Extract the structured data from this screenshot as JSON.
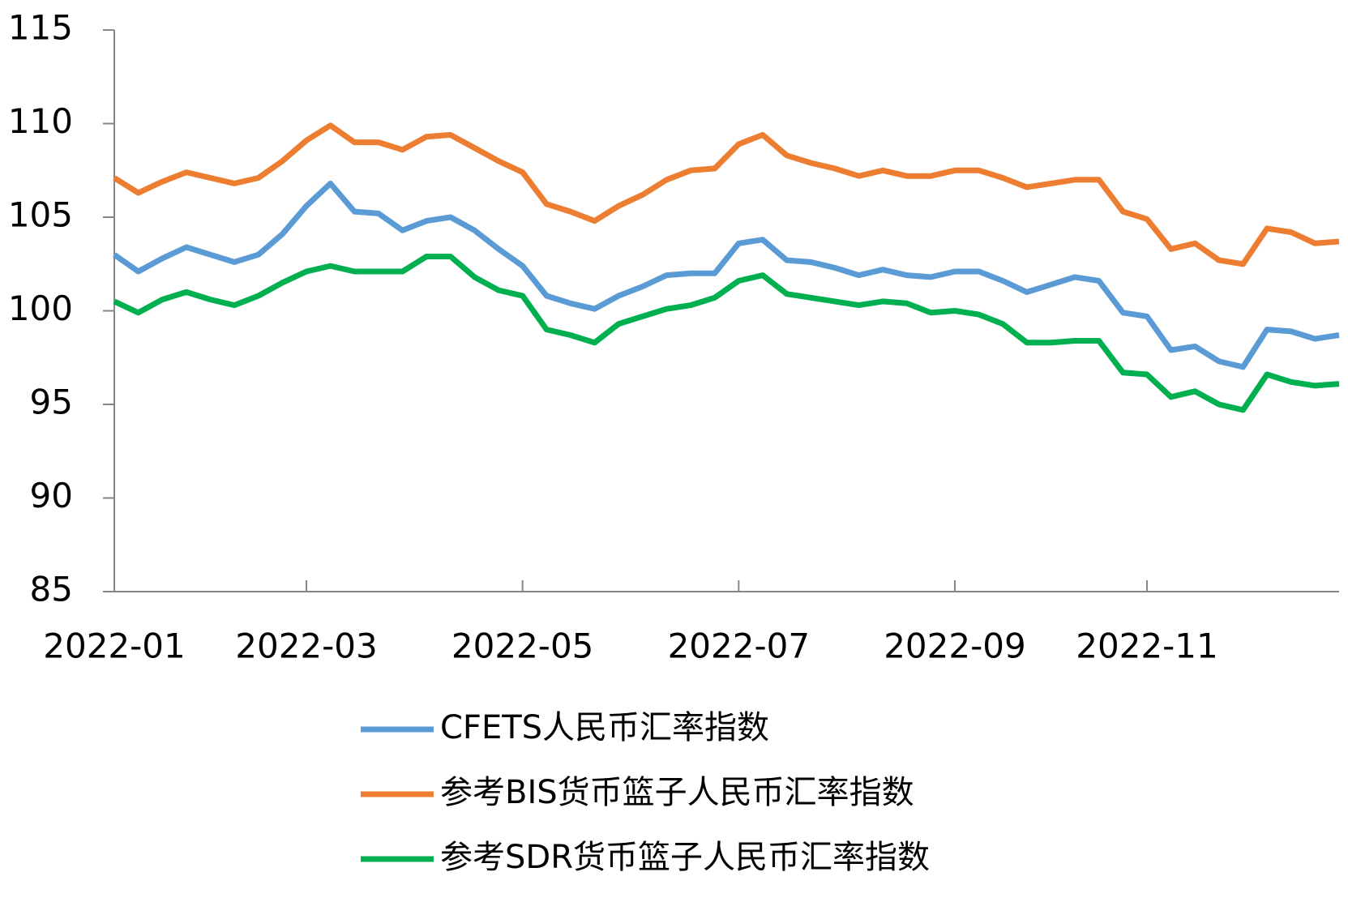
{
  "chart_data": {
    "type": "line",
    "categories": [
      "2022-01",
      null,
      null,
      null,
      null,
      null,
      null,
      null,
      "2022-03",
      null,
      null,
      null,
      null,
      null,
      null,
      null,
      null,
      "2022-05",
      null,
      null,
      null,
      null,
      null,
      null,
      null,
      null,
      "2022-07",
      null,
      null,
      null,
      null,
      null,
      null,
      null,
      null,
      "2022-09",
      null,
      null,
      null,
      null,
      null,
      null,
      null,
      "2022-11",
      null,
      null,
      null,
      null,
      null,
      null,
      null,
      null
    ],
    "series": [
      {
        "name": "CFETS人民币汇率指数",
        "color": "#5b9bd5",
        "values": [
          103.0,
          102.1,
          102.8,
          103.4,
          103.0,
          102.6,
          103.0,
          104.1,
          105.6,
          106.8,
          105.3,
          105.2,
          104.3,
          104.8,
          105.0,
          104.3,
          103.3,
          102.4,
          100.8,
          100.4,
          100.1,
          100.8,
          101.3,
          101.9,
          102.0,
          102.0,
          103.6,
          103.8,
          102.7,
          102.6,
          102.3,
          101.9,
          102.2,
          101.9,
          101.8,
          102.1,
          102.1,
          101.6,
          101.0,
          101.4,
          101.8,
          101.6,
          99.9,
          99.7,
          97.9,
          98.1,
          97.3,
          97.0,
          99.0,
          98.9,
          98.5,
          98.7
        ]
      },
      {
        "name": "参考BIS货币篮子人民币汇率指数",
        "color": "#ed7d31",
        "values": [
          107.1,
          106.3,
          106.9,
          107.4,
          107.1,
          106.8,
          107.1,
          108.0,
          109.1,
          109.9,
          109.0,
          109.0,
          108.6,
          109.3,
          109.4,
          108.7,
          108.0,
          107.4,
          105.7,
          105.3,
          104.8,
          105.6,
          106.2,
          107.0,
          107.5,
          107.6,
          108.9,
          109.4,
          108.3,
          107.9,
          107.6,
          107.2,
          107.5,
          107.2,
          107.2,
          107.5,
          107.5,
          107.1,
          106.6,
          106.8,
          107.0,
          107.0,
          105.3,
          104.9,
          103.3,
          103.6,
          102.7,
          102.5,
          104.4,
          104.2,
          103.6,
          103.7
        ]
      },
      {
        "name": "参考SDR货币篮子人民币汇率指数",
        "color": "#00b050",
        "values": [
          100.5,
          99.9,
          100.6,
          101.0,
          100.6,
          100.3,
          100.8,
          101.5,
          102.1,
          102.4,
          102.1,
          102.1,
          102.1,
          102.9,
          102.9,
          101.8,
          101.1,
          100.8,
          99.0,
          98.7,
          98.3,
          99.3,
          99.7,
          100.1,
          100.3,
          100.7,
          101.6,
          101.9,
          100.9,
          100.7,
          100.5,
          100.3,
          100.5,
          100.4,
          99.9,
          100.0,
          99.8,
          99.3,
          98.3,
          98.3,
          98.4,
          98.4,
          96.7,
          96.6,
          95.4,
          95.7,
          95.0,
          94.7,
          96.6,
          96.2,
          96.0,
          96.1
        ]
      }
    ],
    "ylim": [
      85,
      115
    ],
    "yticks": [
      85,
      90,
      95,
      100,
      105,
      110,
      115
    ]
  }
}
